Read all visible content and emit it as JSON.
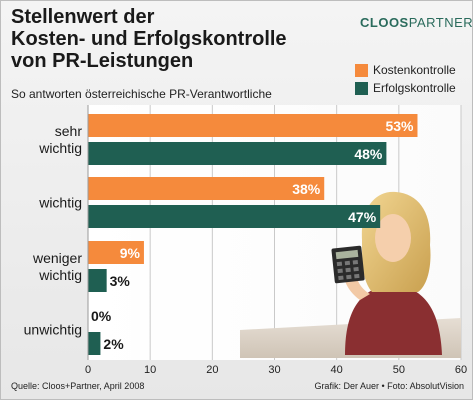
{
  "title_lines": [
    "Stellenwert der",
    "Kosten- und Erfolgskontrolle",
    "von PR-Leistungen"
  ],
  "subtitle": "So antworten österreichische PR-Verantwortliche",
  "logo": {
    "bold": "CLOOS",
    "light": "PARTNER"
  },
  "colors": {
    "kosten": "#f58a3c",
    "erfolg": "#1f5f52"
  },
  "source": "Quelle: Cloos+Partner, April 2008",
  "credits": "Grafik: Der Auer • Foto: AbsolutVision",
  "chart_data": {
    "type": "bar",
    "orientation": "horizontal",
    "categories": [
      [
        "sehr",
        "wichtig"
      ],
      [
        "wichtig"
      ],
      [
        "weniger",
        "wichtig"
      ],
      [
        "unwichtig"
      ]
    ],
    "series": [
      {
        "name": "Kostenkontrolle",
        "values": [
          53,
          38,
          9,
          0
        ]
      },
      {
        "name": "Erfolgskontrolle",
        "values": [
          48,
          47,
          3,
          2
        ]
      }
    ],
    "value_labels": [
      [
        "53%",
        "38%",
        "9%",
        "0%"
      ],
      [
        "48%",
        "47%",
        "3%",
        "2%"
      ]
    ],
    "xlim": [
      0,
      60
    ],
    "xticks": [
      0,
      10,
      20,
      30,
      40,
      50,
      60
    ],
    "grid": true,
    "legend_position": "top-right"
  }
}
